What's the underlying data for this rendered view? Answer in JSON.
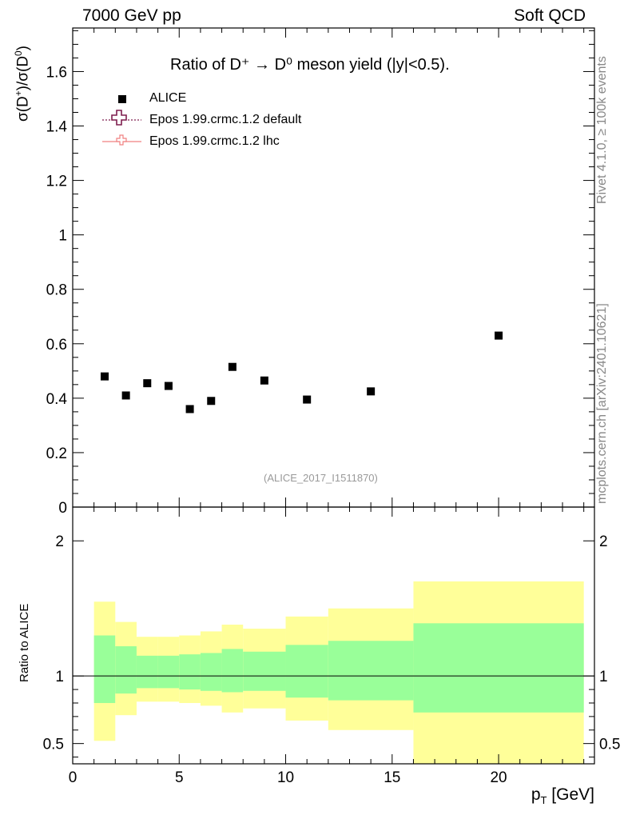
{
  "header": {
    "left": "7000 GeV pp",
    "right": "Soft QCD"
  },
  "side_labels": {
    "rivet": "Rivet 4.1.0, ≥ 100k events",
    "mcplots": "mcplots.cern.ch [arXiv:2401.10621]"
  },
  "chart_data": {
    "type": "scatter",
    "title": "Ratio of D⁺ → D⁰ meson yield (|y|<0.5).",
    "analysis_ref": "(ALICE_2017_I1511870)",
    "ylabel": "σ(D⁺)/σ(D⁰)",
    "xlabel": "p_T [GeV]",
    "xlim": [
      0,
      24.5
    ],
    "ylim": [
      0,
      1.76
    ],
    "x_ticks": [
      0,
      5,
      10,
      15,
      20
    ],
    "y_ticks": [
      0.2,
      0.4,
      0.6,
      0.8,
      1,
      1.2,
      1.4,
      1.6
    ],
    "y_tick_labels": [
      "0.2",
      "0.4",
      "0.6",
      "0.8",
      "1",
      "1.2",
      "1.4",
      "1.6"
    ],
    "bottom_axis_partial_label": "0",
    "legend": [
      {
        "name": "ALICE",
        "marker": "square",
        "color": "#000000"
      },
      {
        "name": "Epos 1.99.crmc.1.2 default",
        "marker": "open-cross",
        "color": "#7f1f4f",
        "line": "dotted"
      },
      {
        "name": "Epos 1.99.crmc.1.2 lhc",
        "marker": "open-cross",
        "color": "#f08080",
        "line": "solid"
      }
    ],
    "series": [
      {
        "name": "ALICE",
        "x": [
          1.5,
          2.5,
          3.5,
          4.5,
          5.5,
          6.5,
          7.5,
          9,
          11,
          14,
          20
        ],
        "y": [
          0.48,
          0.41,
          0.455,
          0.445,
          0.36,
          0.39,
          0.515,
          0.465,
          0.395,
          0.425,
          0.63
        ]
      }
    ],
    "ratio_panel": {
      "ylabel": "Ratio to ALICE",
      "ylim": [
        0.35,
        2.25
      ],
      "y_ticks": [
        0.5,
        1,
        2
      ],
      "y_tick_labels": [
        "0.5",
        "1",
        "2"
      ],
      "reference_line": 1,
      "bins": [
        {
          "lo": 1,
          "hi": 2,
          "yellow": [
            0.52,
            1.55
          ],
          "green": [
            0.8,
            1.3
          ]
        },
        {
          "lo": 2,
          "hi": 3,
          "yellow": [
            0.71,
            1.4
          ],
          "green": [
            0.87,
            1.22
          ]
        },
        {
          "lo": 3,
          "hi": 4,
          "yellow": [
            0.81,
            1.29
          ],
          "green": [
            0.91,
            1.15
          ]
        },
        {
          "lo": 4,
          "hi": 5,
          "yellow": [
            0.81,
            1.29
          ],
          "green": [
            0.91,
            1.15
          ]
        },
        {
          "lo": 5,
          "hi": 6,
          "yellow": [
            0.8,
            1.3
          ],
          "green": [
            0.9,
            1.16
          ]
        },
        {
          "lo": 6,
          "hi": 7,
          "yellow": [
            0.78,
            1.33
          ],
          "green": [
            0.89,
            1.17
          ]
        },
        {
          "lo": 7,
          "hi": 8,
          "yellow": [
            0.73,
            1.38
          ],
          "green": [
            0.88,
            1.2
          ]
        },
        {
          "lo": 8,
          "hi": 10,
          "yellow": [
            0.76,
            1.35
          ],
          "green": [
            0.89,
            1.18
          ]
        },
        {
          "lo": 10,
          "hi": 12,
          "yellow": [
            0.67,
            1.44
          ],
          "green": [
            0.84,
            1.23
          ]
        },
        {
          "lo": 12,
          "hi": 16,
          "yellow": [
            0.6,
            1.5
          ],
          "green": [
            0.82,
            1.26
          ]
        },
        {
          "lo": 16,
          "hi": 24,
          "yellow": [
            0.35,
            1.7
          ],
          "green": [
            0.73,
            1.39
          ]
        }
      ]
    },
    "colors": {
      "yellow_band": "#ffff99",
      "green_band": "#99ff99",
      "data": "#000000"
    }
  }
}
